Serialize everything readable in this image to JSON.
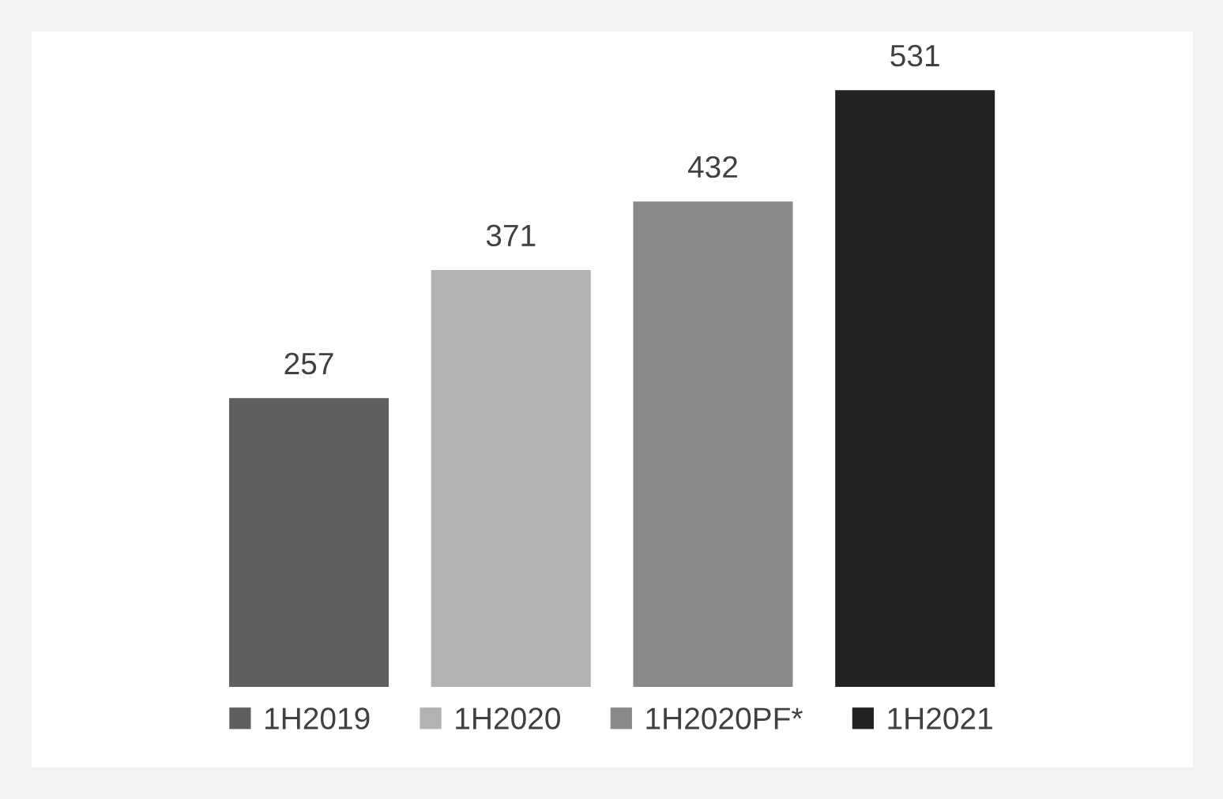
{
  "chart_data": {
    "type": "bar",
    "categories": [
      null
    ],
    "series": [
      {
        "name": "1H2019",
        "color": "#5f5f5f",
        "values": [
          257
        ]
      },
      {
        "name": "1H2020",
        "color": "#b2b2b2",
        "values": [
          371
        ]
      },
      {
        "name": "1H2020PF*",
        "color": "#898989",
        "values": [
          432
        ]
      },
      {
        "name": "1H2021",
        "color": "#222222",
        "values": [
          531
        ]
      }
    ],
    "data_labels": true,
    "legend": "bottom",
    "tick_labels": false,
    "grid": false
  }
}
